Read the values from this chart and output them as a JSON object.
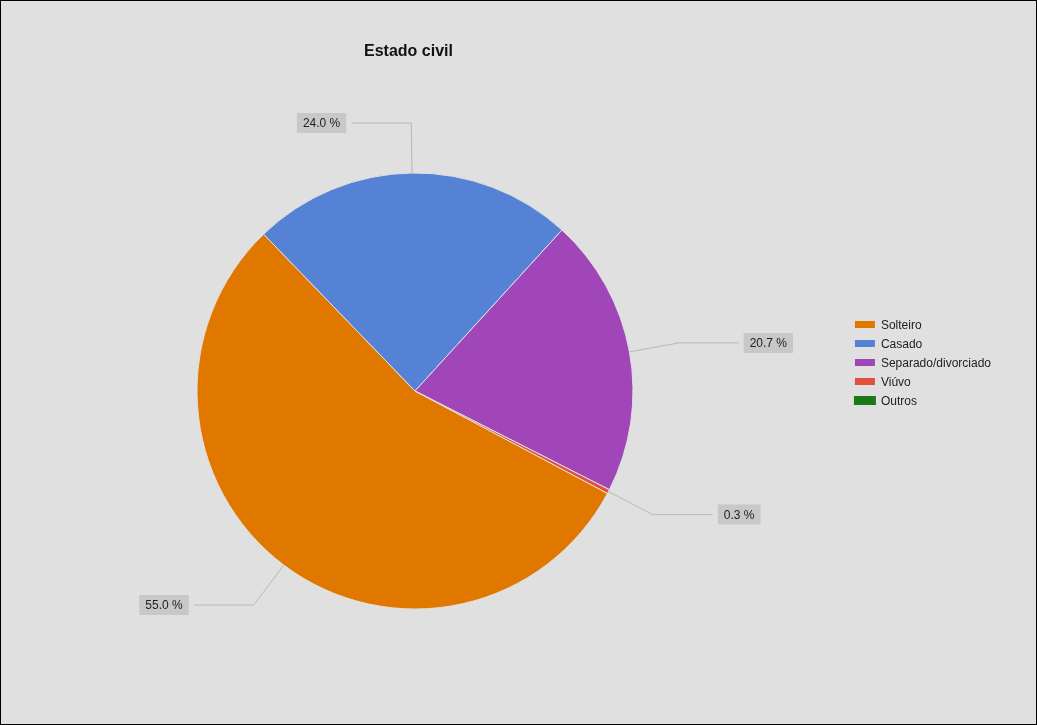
{
  "chart_data": {
    "type": "pie",
    "title": "Estado civil",
    "categories": [
      "Solteiro",
      "Casado",
      "Separado/divorciado",
      "Viúvo",
      "Outros"
    ],
    "values": [
      55.0,
      24.0,
      20.7,
      0.3,
      0
    ],
    "value_labels": [
      "55.0 %",
      "24.0 %",
      "20.7 %",
      "0.3 %",
      null
    ],
    "colors": [
      "#e07800",
      "#5682d6",
      "#a046b8",
      "#e0503c",
      "#1a7a1a"
    ],
    "legend": "right"
  }
}
